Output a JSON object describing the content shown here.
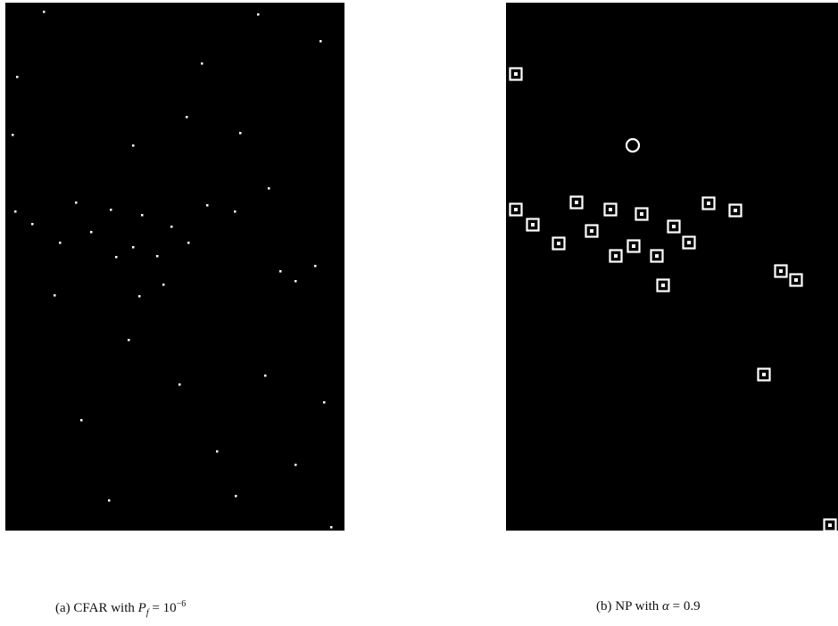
{
  "figures": [
    {
      "label": "(a)",
      "text": "CFAR with",
      "var": "P",
      "sub": "f",
      "rel": "= 10",
      "sup": "−6"
    },
    {
      "label": "(b)",
      "text": "NP with",
      "var": "α",
      "rel": "= 0.9"
    }
  ]
}
